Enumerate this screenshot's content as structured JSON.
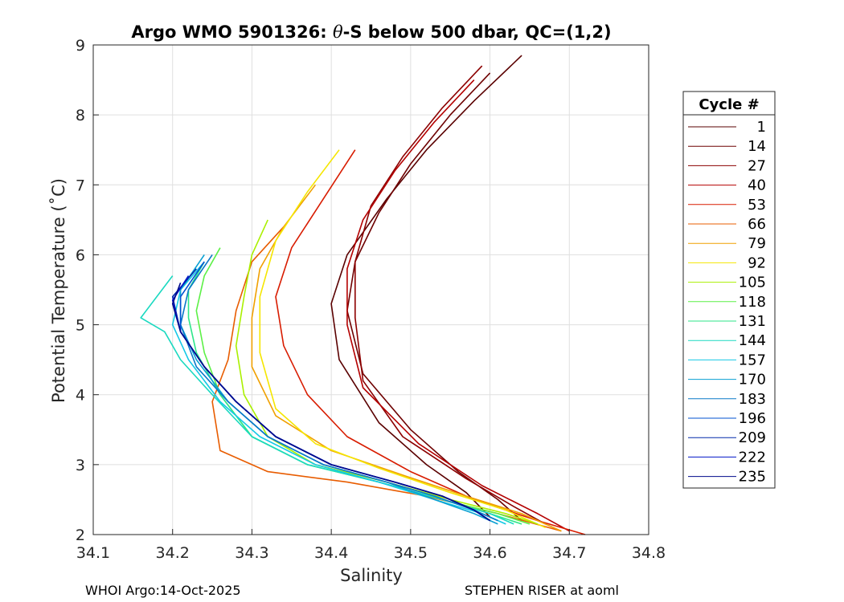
{
  "chart_data": {
    "type": "line",
    "title_prefix": "Argo WMO 5901326: ",
    "title_symbol": "θ",
    "title_suffix": "-S below 500 dbar,  QC=(1,2)",
    "xlabel": "Salinity",
    "ylabel": "Potential Temperature (˚C)",
    "xlim": [
      34.1,
      34.8
    ],
    "ylim": [
      2,
      9
    ],
    "xticks": [
      "34.1",
      "34.2",
      "34.3",
      "34.4",
      "34.5",
      "34.6",
      "34.7",
      "34.8"
    ],
    "yticks": [
      "2",
      "3",
      "4",
      "5",
      "6",
      "7",
      "8",
      "9"
    ],
    "grid": true,
    "legend": {
      "title": "Cycle #",
      "placement": "outside-right",
      "entries": [
        {
          "label": "1",
          "color": "#5a0000"
        },
        {
          "label": "14",
          "color": "#6e0000"
        },
        {
          "label": "27",
          "color": "#8c0000"
        },
        {
          "label": "40",
          "color": "#b40000"
        },
        {
          "label": "53",
          "color": "#d81c00"
        },
        {
          "label": "66",
          "color": "#e85c00"
        },
        {
          "label": "79",
          "color": "#f0a000"
        },
        {
          "label": "92",
          "color": "#f5e600"
        },
        {
          "label": "105",
          "color": "#aaf000"
        },
        {
          "label": "118",
          "color": "#5cf046"
        },
        {
          "label": "131",
          "color": "#2ee68a"
        },
        {
          "label": "144",
          "color": "#1ad9c0"
        },
        {
          "label": "157",
          "color": "#14c8e6"
        },
        {
          "label": "170",
          "color": "#0aa0d2"
        },
        {
          "label": "183",
          "color": "#0a78c8"
        },
        {
          "label": "196",
          "color": "#0050d2"
        },
        {
          "label": "209",
          "color": "#0028aa"
        },
        {
          "label": "222",
          "color": "#0014c8"
        },
        {
          "label": "235",
          "color": "#000a8c"
        }
      ]
    },
    "series": [
      {
        "name": "1",
        "color": "#5a0000",
        "s": [
          34.64,
          34.58,
          34.52,
          34.47,
          34.42,
          34.4,
          34.41,
          34.46,
          34.52,
          34.57,
          34.6
        ],
        "t": [
          8.85,
          8.2,
          7.5,
          6.8,
          6.0,
          5.3,
          4.5,
          3.6,
          3.0,
          2.6,
          2.25
        ]
      },
      {
        "name": "14",
        "color": "#6e0000",
        "s": [
          34.6,
          34.55,
          34.5,
          34.46,
          34.43,
          34.42,
          34.44,
          34.5,
          34.56,
          34.61,
          34.64
        ],
        "t": [
          8.6,
          8.0,
          7.3,
          6.6,
          5.9,
          5.2,
          4.3,
          3.5,
          2.9,
          2.5,
          2.2
        ]
      },
      {
        "name": "27",
        "color": "#8c0000",
        "s": [
          34.59,
          34.54,
          34.49,
          34.45,
          34.43,
          34.43,
          34.44,
          34.49,
          34.57,
          34.63,
          34.67
        ],
        "t": [
          8.7,
          8.1,
          7.4,
          6.7,
          5.9,
          5.1,
          4.2,
          3.4,
          2.8,
          2.4,
          2.15
        ]
      },
      {
        "name": "40",
        "color": "#b40000",
        "s": [
          34.58,
          34.53,
          34.48,
          34.44,
          34.42,
          34.42,
          34.44,
          34.51,
          34.59,
          34.66,
          34.7
        ],
        "t": [
          8.5,
          7.9,
          7.2,
          6.5,
          5.8,
          5.0,
          4.1,
          3.3,
          2.7,
          2.3,
          2.05
        ]
      },
      {
        "name": "53",
        "color": "#d81c00",
        "s": [
          34.43,
          34.39,
          34.35,
          34.33,
          34.34,
          34.37,
          34.42,
          34.5,
          34.58,
          34.66,
          34.72
        ],
        "t": [
          7.5,
          6.8,
          6.1,
          5.4,
          4.7,
          4.0,
          3.4,
          2.9,
          2.5,
          2.2,
          2.0
        ]
      },
      {
        "name": "66",
        "color": "#e85c00",
        "s": [
          34.34,
          34.3,
          34.28,
          34.27,
          34.25,
          34.26,
          34.32,
          34.42,
          34.52,
          34.61,
          34.69
        ],
        "t": [
          6.4,
          5.9,
          5.2,
          4.5,
          3.9,
          3.2,
          2.9,
          2.75,
          2.55,
          2.3,
          2.05
        ]
      },
      {
        "name": "79",
        "color": "#f0a000",
        "s": [
          34.38,
          34.34,
          34.31,
          34.3,
          34.3,
          34.33,
          34.4,
          34.49,
          34.57,
          34.64,
          34.69
        ],
        "t": [
          7.0,
          6.4,
          5.8,
          5.1,
          4.4,
          3.7,
          3.2,
          2.85,
          2.55,
          2.3,
          2.05
        ]
      },
      {
        "name": "92",
        "color": "#f5e600",
        "s": [
          34.41,
          34.37,
          34.33,
          34.31,
          34.31,
          34.33,
          34.38,
          34.46,
          34.55,
          34.62,
          34.67
        ],
        "t": [
          7.5,
          6.9,
          6.2,
          5.4,
          4.6,
          3.8,
          3.3,
          2.95,
          2.6,
          2.35,
          2.1
        ]
      },
      {
        "name": "105",
        "color": "#aaf000",
        "s": [
          34.32,
          34.3,
          34.29,
          34.28,
          34.29,
          34.32,
          34.38,
          34.47,
          34.55,
          34.62,
          34.66
        ],
        "t": [
          6.5,
          6.0,
          5.4,
          4.7,
          4.0,
          3.4,
          3.0,
          2.75,
          2.5,
          2.3,
          2.15
        ]
      },
      {
        "name": "118",
        "color": "#5cf046",
        "s": [
          34.26,
          34.24,
          34.23,
          34.24,
          34.26,
          34.3,
          34.37,
          34.46,
          34.54,
          34.61,
          34.65
        ],
        "t": [
          6.1,
          5.7,
          5.2,
          4.6,
          4.0,
          3.4,
          3.0,
          2.75,
          2.5,
          2.3,
          2.15
        ]
      },
      {
        "name": "131",
        "color": "#2ee68a",
        "s": [
          34.24,
          34.22,
          34.22,
          34.23,
          34.26,
          34.3,
          34.37,
          34.46,
          34.54,
          34.6,
          34.64
        ],
        "t": [
          5.9,
          5.5,
          5.1,
          4.6,
          4.0,
          3.4,
          3.0,
          2.75,
          2.5,
          2.3,
          2.15
        ]
      },
      {
        "name": "144",
        "color": "#1ad9c0",
        "s": [
          34.2,
          34.16,
          34.19,
          34.21,
          34.25,
          34.3,
          34.37,
          34.46,
          34.54,
          34.6,
          34.63
        ],
        "t": [
          5.7,
          5.1,
          4.9,
          4.5,
          4.0,
          3.4,
          3.0,
          2.75,
          2.5,
          2.3,
          2.15
        ]
      },
      {
        "name": "157",
        "color": "#14c8e6",
        "s": [
          34.24,
          34.21,
          34.2,
          34.22,
          34.26,
          34.31,
          34.38,
          34.46,
          34.53,
          34.59,
          34.62
        ],
        "t": [
          5.9,
          5.5,
          5.0,
          4.5,
          3.9,
          3.4,
          3.0,
          2.75,
          2.5,
          2.3,
          2.15
        ]
      },
      {
        "name": "170",
        "color": "#0aa0d2",
        "s": [
          34.24,
          34.21,
          34.21,
          34.23,
          34.27,
          34.32,
          34.39,
          34.47,
          34.53,
          34.58,
          34.61
        ],
        "t": [
          6.0,
          5.5,
          5.0,
          4.5,
          3.9,
          3.4,
          3.0,
          2.75,
          2.5,
          2.3,
          2.15
        ]
      },
      {
        "name": "183",
        "color": "#0a78c8",
        "s": [
          34.25,
          34.22,
          34.21,
          34.23,
          34.27,
          34.32,
          34.39,
          34.47,
          34.53,
          34.58,
          34.61
        ],
        "t": [
          6.0,
          5.5,
          5.0,
          4.4,
          3.9,
          3.4,
          3.0,
          2.75,
          2.55,
          2.35,
          2.2
        ]
      },
      {
        "name": "196",
        "color": "#0050d2",
        "s": [
          34.24,
          34.21,
          34.21,
          34.24,
          34.28,
          34.33,
          34.4,
          34.48,
          34.54,
          34.58,
          34.6
        ],
        "t": [
          5.9,
          5.4,
          4.9,
          4.4,
          3.9,
          3.4,
          3.0,
          2.75,
          2.55,
          2.35,
          2.2
        ]
      },
      {
        "name": "209",
        "color": "#0028aa",
        "s": [
          34.23,
          34.2,
          34.21,
          34.24,
          34.28,
          34.33,
          34.4,
          34.48,
          34.54,
          34.58,
          34.6
        ],
        "t": [
          5.8,
          5.4,
          4.9,
          4.4,
          3.9,
          3.4,
          3.0,
          2.75,
          2.55,
          2.35,
          2.2
        ]
      },
      {
        "name": "222",
        "color": "#0014c8",
        "s": [
          34.22,
          34.2,
          34.21,
          34.24,
          34.28,
          34.33,
          34.4,
          34.48,
          34.54,
          34.58,
          34.6
        ],
        "t": [
          5.7,
          5.35,
          4.9,
          4.4,
          3.9,
          3.4,
          3.0,
          2.75,
          2.55,
          2.35,
          2.2
        ]
      },
      {
        "name": "235",
        "color": "#000a8c",
        "s": [
          34.21,
          34.2,
          34.21,
          34.24,
          34.28,
          34.33,
          34.4,
          34.48,
          34.54,
          34.58,
          34.6
        ],
        "t": [
          5.6,
          5.3,
          4.9,
          4.4,
          3.9,
          3.4,
          3.0,
          2.75,
          2.55,
          2.35,
          2.2
        ]
      }
    ]
  },
  "footer": {
    "left": "WHOI Argo:14-Oct-2025",
    "right": "STEPHEN RISER at aoml"
  }
}
